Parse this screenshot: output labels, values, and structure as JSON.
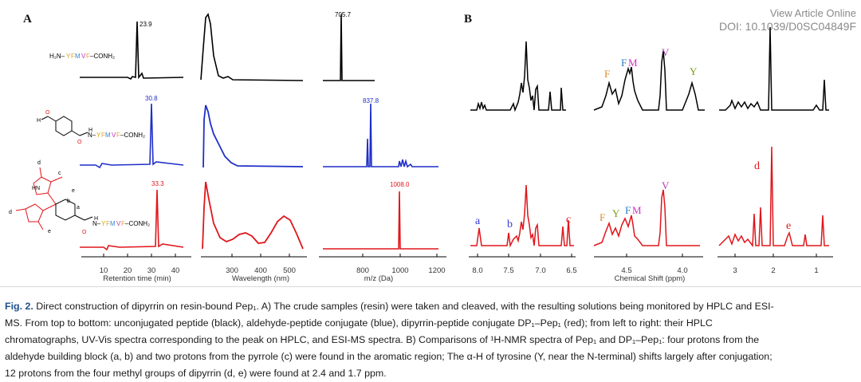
{
  "header": {
    "view_article": "View Article Online",
    "doi": "DOI: 10.1039/D0SC04849F"
  },
  "panel_a": {
    "label": "A",
    "rows": [
      {
        "color": "#000000",
        "hplc_peak": "23.9",
        "ms_peak": "705.7",
        "molecule": "H₂N–YFMVF–CONH₂"
      },
      {
        "color": "#1f2fc8",
        "hplc_peak": "30.8",
        "ms_peak": "837.8",
        "molecule": "N–YFMVF–CONH₂"
      },
      {
        "color": "#e0161b",
        "hplc_peak": "33.3",
        "ms_peak": "1008.0",
        "molecule": "N–YFMVF–CONH₂"
      }
    ],
    "hplc_axis": {
      "ticks": [
        "10",
        "20",
        "30",
        "40"
      ],
      "label": "Retention time (min)"
    },
    "uv_axis": {
      "ticks": [
        "300",
        "400",
        "500"
      ],
      "label": "Wavelength (nm)"
    },
    "ms_axis": {
      "ticks": [
        "800",
        "1000",
        "1200"
      ],
      "label": "m/z (Da)"
    }
  },
  "panel_b": {
    "label": "B",
    "axis_label": "Chemical Shift (ppm)",
    "ticks_left": [
      "8.0",
      "7.5",
      "7.0",
      "6.5"
    ],
    "ticks_mid": [
      "4.5",
      "4.0"
    ],
    "ticks_right": [
      "3",
      "2",
      "1"
    ],
    "top_labels": [
      "F",
      "FM",
      "V",
      "Y"
    ],
    "bottom_labels": [
      "a",
      "b",
      "c",
      "F",
      "Y",
      "FM",
      "V",
      "d",
      "e"
    ]
  },
  "caption": {
    "fig_label": "Fig. 2.",
    "line1": "Direct construction of dipyrrin on resin-bound Pep₁. A) The crude samples (resin) were taken and cleaved, with the resulting solutions being monitored by HPLC and ESI-",
    "line2": "MS. From top to bottom: unconjugated peptide (black), aldehyde-peptide conjugate (blue), dipyrrin-peptide conjugate DP₁–Pep₁ (red); from left to right: their HPLC",
    "line3": "chromatographs, UV-Vis spectra corresponding to the peak on HPLC, and ESI-MS spectra. B) Comparisons of ¹H-NMR spectra of Pep₁ and DP₁–Pep₁: four protons from the",
    "line4": "aldehyde building block (a, b) and two protons from the pyrrole (c) were found in the aromatic region; The α-H of tyrosine (Y, near the N-terminal) shifts largely after conjugation;",
    "line5": "12 protons from the four methyl groups of dipyrrin (d, e) were found at 2.4 and 1.7 ppm."
  }
}
